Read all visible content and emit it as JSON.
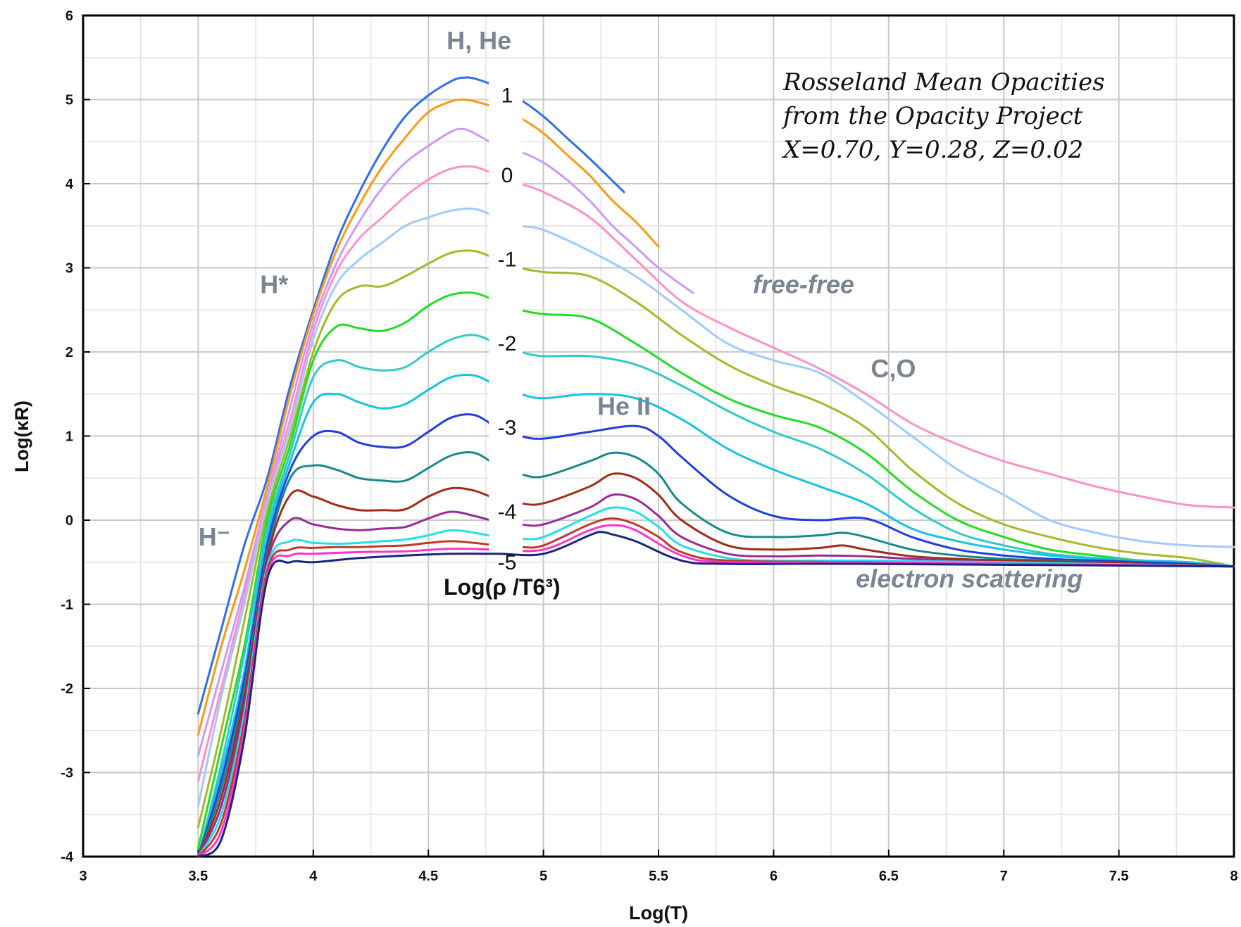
{
  "chart_data": {
    "type": "line",
    "xlabel": "Log(T)",
    "ylabel": "Log(κR)",
    "xlim": [
      3,
      8
    ],
    "ylim": [
      -4,
      6
    ],
    "xticks": [
      "3",
      "3.5",
      "4",
      "4.5",
      "5",
      "5.5",
      "6",
      "6.5",
      "7",
      "7.5",
      "8"
    ],
    "yticks": [
      "-4",
      "-3",
      "-2",
      "-1",
      "0",
      "1",
      "2",
      "3",
      "4",
      "5",
      "6"
    ],
    "grid": true,
    "info_lines": [
      "Rosseland Mean Opacities",
      "from the Opacity Project",
      "X=0.70, Y=0.28, Z=0.02"
    ],
    "density_title": "Log(ρ /T6³)",
    "density_labels": [
      {
        "text": "1",
        "y": 5.05
      },
      {
        "text": "0",
        "y": 4.1
      },
      {
        "text": "-1",
        "y": 3.1
      },
      {
        "text": "-2",
        "y": 2.1
      },
      {
        "text": "-3",
        "y": 1.1
      },
      {
        "text": "-4",
        "y": 0.1
      },
      {
        "text": "-5",
        "y": -0.5
      }
    ],
    "annotations": [
      {
        "text": "H, He",
        "x": 4.72,
        "y": 5.6,
        "style": "normal"
      },
      {
        "text": "H*",
        "x": 3.83,
        "y": 2.7,
        "style": "normal"
      },
      {
        "text": "H⁻",
        "x": 3.57,
        "y": -0.3,
        "style": "normal"
      },
      {
        "text": "He II",
        "x": 5.35,
        "y": 1.25,
        "style": "normal"
      },
      {
        "text": "C,O",
        "x": 6.52,
        "y": 1.7,
        "style": "normal"
      },
      {
        "text": "free-free",
        "x": 6.13,
        "y": 2.7,
        "style": "italic"
      },
      {
        "text": "electron scattering",
        "x": 6.85,
        "y": -0.8,
        "style": "italic"
      }
    ],
    "series": [
      {
        "color": "#2f6fe8",
        "x": [
          3.5,
          3.6,
          3.7,
          3.8,
          3.9,
          4.0,
          4.1,
          4.2,
          4.3,
          4.4,
          4.5,
          4.6,
          4.65,
          4.7,
          4.8,
          4.9,
          5.0,
          5.1,
          5.2,
          5.35
        ],
        "y": [
          -2.3,
          -1.3,
          -0.3,
          0.5,
          1.6,
          2.5,
          3.3,
          3.9,
          4.4,
          4.8,
          5.05,
          5.22,
          5.26,
          5.25,
          5.15,
          5.0,
          4.8,
          4.55,
          4.3,
          3.9
        ]
      },
      {
        "color": "#ff9912",
        "x": [
          3.5,
          3.6,
          3.7,
          3.8,
          3.9,
          4.0,
          4.1,
          4.2,
          4.3,
          4.4,
          4.5,
          4.6,
          4.65,
          4.7,
          4.8,
          4.9,
          5.0,
          5.1,
          5.2,
          5.3,
          5.4,
          5.5
        ],
        "y": [
          -2.55,
          -1.5,
          -0.6,
          0.4,
          1.5,
          2.45,
          3.2,
          3.75,
          4.2,
          4.55,
          4.85,
          4.98,
          5.0,
          4.98,
          4.9,
          4.78,
          4.6,
          4.35,
          4.1,
          3.8,
          3.55,
          3.25
        ]
      },
      {
        "color": "#cc99ff",
        "x": [
          3.5,
          3.6,
          3.7,
          3.8,
          3.9,
          4.0,
          4.1,
          4.2,
          4.3,
          4.4,
          4.5,
          4.6,
          4.65,
          4.7,
          4.8,
          4.9,
          5.0,
          5.1,
          5.2,
          5.3,
          5.4,
          5.5,
          5.65
        ],
        "y": [
          -2.8,
          -1.8,
          -0.8,
          0.3,
          1.35,
          2.35,
          3.05,
          3.55,
          3.95,
          4.25,
          4.45,
          4.62,
          4.65,
          4.6,
          4.45,
          4.38,
          4.25,
          4.05,
          3.8,
          3.5,
          3.25,
          3.0,
          2.7
        ]
      },
      {
        "color": "#ff8fc8",
        "x": [
          3.5,
          3.6,
          3.7,
          3.8,
          3.9,
          4.0,
          4.1,
          4.2,
          4.3,
          4.4,
          4.5,
          4.6,
          4.7,
          4.8,
          4.9,
          5.0,
          5.2,
          5.4,
          5.6,
          5.8,
          6.0,
          6.2,
          6.4,
          6.6,
          6.8,
          7.0,
          7.2,
          7.4,
          7.6,
          7.8,
          8.0
        ],
        "y": [
          -3.1,
          -2.0,
          -0.9,
          0.25,
          1.2,
          2.25,
          2.95,
          3.35,
          3.6,
          3.85,
          4.05,
          4.18,
          4.2,
          4.1,
          4.0,
          3.9,
          3.6,
          3.1,
          2.6,
          2.3,
          2.05,
          1.8,
          1.5,
          1.15,
          0.9,
          0.7,
          0.55,
          0.4,
          0.28,
          0.18,
          0.15
        ]
      },
      {
        "color": "#9ecbff",
        "x": [
          3.5,
          3.6,
          3.7,
          3.8,
          3.9,
          4.0,
          4.1,
          4.2,
          4.3,
          4.4,
          4.5,
          4.6,
          4.7,
          4.8,
          4.9,
          5.0,
          5.2,
          5.4,
          5.6,
          5.8,
          6.0,
          6.2,
          6.4,
          6.6,
          6.8,
          7.0,
          7.2,
          7.4,
          7.6,
          7.8,
          8.0
        ],
        "y": [
          -3.4,
          -2.1,
          -1.0,
          0.2,
          1.1,
          2.15,
          2.8,
          3.1,
          3.3,
          3.5,
          3.6,
          3.68,
          3.7,
          3.6,
          3.5,
          3.45,
          3.2,
          2.9,
          2.5,
          2.1,
          1.9,
          1.75,
          1.4,
          1.0,
          0.6,
          0.3,
          0.0,
          -0.15,
          -0.25,
          -0.3,
          -0.32
        ]
      },
      {
        "color": "#a8b82a",
        "x": [
          3.5,
          3.6,
          3.7,
          3.8,
          3.9,
          4.0,
          4.1,
          4.2,
          4.3,
          4.4,
          4.5,
          4.6,
          4.7,
          4.8,
          4.9,
          5.0,
          5.2,
          5.4,
          5.6,
          5.8,
          6.0,
          6.2,
          6.4,
          6.6,
          6.8,
          7.0,
          7.2,
          7.4,
          7.6,
          7.8,
          8.0
        ],
        "y": [
          -3.65,
          -2.5,
          -1.2,
          0.1,
          1.0,
          2.0,
          2.6,
          2.78,
          2.78,
          2.9,
          3.05,
          3.18,
          3.2,
          3.1,
          3.0,
          2.95,
          2.9,
          2.6,
          2.2,
          1.85,
          1.6,
          1.4,
          1.1,
          0.6,
          0.2,
          -0.05,
          -0.2,
          -0.32,
          -0.4,
          -0.45,
          -0.55
        ]
      },
      {
        "color": "#22dd22",
        "x": [
          3.5,
          3.6,
          3.7,
          3.8,
          3.9,
          4.0,
          4.1,
          4.2,
          4.3,
          4.4,
          4.5,
          4.6,
          4.7,
          4.8,
          4.9,
          5.0,
          5.2,
          5.4,
          5.6,
          5.8,
          6.0,
          6.2,
          6.4,
          6.6,
          6.8,
          7.0,
          7.2,
          7.4,
          7.6,
          7.8,
          8.0
        ],
        "y": [
          -3.9,
          -2.7,
          -1.5,
          0.0,
          0.9,
          1.9,
          2.3,
          2.28,
          2.25,
          2.35,
          2.55,
          2.68,
          2.7,
          2.6,
          2.5,
          2.45,
          2.4,
          2.1,
          1.75,
          1.45,
          1.25,
          1.1,
          0.8,
          0.35,
          0.0,
          -0.2,
          -0.35,
          -0.42,
          -0.48,
          -0.5,
          -0.55
        ]
      },
      {
        "color": "#33c9c9",
        "x": [
          3.5,
          3.6,
          3.7,
          3.8,
          3.9,
          4.0,
          4.1,
          4.2,
          4.3,
          4.4,
          4.5,
          4.6,
          4.7,
          4.8,
          4.9,
          5.0,
          5.2,
          5.4,
          5.6,
          5.8,
          6.0,
          6.2,
          6.4,
          6.6,
          6.8,
          7.0,
          7.2,
          7.4,
          7.6,
          7.8,
          8.0
        ],
        "y": [
          -4.0,
          -2.9,
          -1.6,
          -0.1,
          0.8,
          1.7,
          1.9,
          1.82,
          1.78,
          1.82,
          2.0,
          2.15,
          2.2,
          2.1,
          2.0,
          1.95,
          1.95,
          1.85,
          1.6,
          1.3,
          1.05,
          0.85,
          0.55,
          0.15,
          -0.15,
          -0.3,
          -0.4,
          -0.45,
          -0.48,
          -0.5,
          -0.55
        ]
      },
      {
        "color": "#16c2e6",
        "x": [
          3.5,
          3.6,
          3.7,
          3.8,
          3.9,
          4.0,
          4.1,
          4.2,
          4.3,
          4.4,
          4.5,
          4.6,
          4.7,
          4.8,
          4.9,
          5.0,
          5.2,
          5.4,
          5.6,
          5.8,
          6.0,
          6.2,
          6.4,
          6.6,
          6.8,
          7.0,
          7.2,
          7.4,
          7.6,
          7.8,
          8.0
        ],
        "y": [
          -4.0,
          -3.0,
          -1.8,
          -0.2,
          0.7,
          1.4,
          1.5,
          1.4,
          1.33,
          1.38,
          1.55,
          1.7,
          1.72,
          1.6,
          1.5,
          1.45,
          1.5,
          1.45,
          1.2,
          0.85,
          0.6,
          0.4,
          0.2,
          -0.1,
          -0.25,
          -0.35,
          -0.42,
          -0.46,
          -0.48,
          -0.5,
          -0.55
        ]
      },
      {
        "color": "#1f3fe0",
        "x": [
          3.5,
          3.6,
          3.7,
          3.8,
          3.9,
          4.0,
          4.1,
          4.2,
          4.3,
          4.4,
          4.5,
          4.6,
          4.7,
          4.8,
          4.9,
          5.0,
          5.2,
          5.4,
          5.5,
          5.6,
          5.8,
          6.0,
          6.2,
          6.4,
          6.6,
          6.8,
          7.0,
          7.2,
          7.4,
          7.6,
          7.8,
          8.0
        ],
        "y": [
          -4.0,
          -3.1,
          -1.9,
          -0.3,
          0.6,
          1.0,
          1.05,
          0.92,
          0.87,
          0.88,
          1.05,
          1.22,
          1.25,
          1.1,
          1.0,
          0.97,
          1.05,
          1.12,
          1.0,
          0.75,
          0.3,
          0.05,
          0.0,
          0.02,
          -0.2,
          -0.35,
          -0.42,
          -0.46,
          -0.48,
          -0.5,
          -0.52,
          -0.55
        ]
      },
      {
        "color": "#168a8a",
        "x": [
          3.5,
          3.6,
          3.7,
          3.8,
          3.9,
          4.0,
          4.1,
          4.2,
          4.3,
          4.4,
          4.5,
          4.6,
          4.7,
          4.8,
          4.9,
          5.0,
          5.2,
          5.3,
          5.4,
          5.5,
          5.6,
          5.8,
          6.0,
          6.2,
          6.3,
          6.4,
          6.6,
          6.8,
          7.0,
          7.2,
          7.4,
          7.6,
          8.0
        ],
        "y": [
          -4.0,
          -3.2,
          -2.0,
          -0.4,
          0.5,
          0.65,
          0.6,
          0.5,
          0.47,
          0.47,
          0.62,
          0.77,
          0.8,
          0.65,
          0.55,
          0.52,
          0.7,
          0.8,
          0.75,
          0.55,
          0.2,
          -0.15,
          -0.2,
          -0.18,
          -0.15,
          -0.2,
          -0.35,
          -0.42,
          -0.46,
          -0.48,
          -0.5,
          -0.52,
          -0.55
        ]
      },
      {
        "color": "#a52a1a",
        "x": [
          3.5,
          3.6,
          3.7,
          3.8,
          3.9,
          4.0,
          4.1,
          4.2,
          4.3,
          4.4,
          4.5,
          4.6,
          4.7,
          4.8,
          4.9,
          5.0,
          5.2,
          5.3,
          5.4,
          5.5,
          5.6,
          5.8,
          6.0,
          6.2,
          6.3,
          6.4,
          6.6,
          6.8,
          7.0,
          7.4,
          8.0
        ],
        "y": [
          -4.0,
          -3.3,
          -2.1,
          -0.45,
          0.3,
          0.28,
          0.18,
          0.12,
          0.12,
          0.13,
          0.28,
          0.38,
          0.35,
          0.25,
          0.2,
          0.2,
          0.4,
          0.55,
          0.5,
          0.3,
          0.0,
          -0.3,
          -0.35,
          -0.33,
          -0.3,
          -0.35,
          -0.43,
          -0.46,
          -0.48,
          -0.5,
          -0.55
        ]
      },
      {
        "color": "#9a2a9a",
        "x": [
          3.5,
          3.6,
          3.7,
          3.8,
          3.9,
          4.0,
          4.1,
          4.2,
          4.3,
          4.4,
          4.5,
          4.6,
          4.7,
          4.8,
          4.9,
          5.0,
          5.2,
          5.3,
          5.4,
          5.5,
          5.6,
          5.8,
          6.0,
          6.2,
          6.4,
          6.6,
          7.0,
          8.0
        ],
        "y": [
          -4.0,
          -3.4,
          -2.2,
          -0.5,
          0.0,
          -0.05,
          -0.1,
          -0.12,
          -0.1,
          -0.08,
          0.02,
          0.1,
          0.05,
          -0.02,
          -0.05,
          -0.05,
          0.15,
          0.3,
          0.25,
          0.05,
          -0.2,
          -0.4,
          -0.43,
          -0.42,
          -0.43,
          -0.46,
          -0.5,
          -0.55
        ]
      },
      {
        "color": "#22e0e8",
        "x": [
          3.5,
          3.6,
          3.7,
          3.8,
          3.9,
          4.0,
          4.1,
          4.2,
          4.3,
          4.4,
          4.5,
          4.6,
          4.7,
          4.8,
          4.9,
          5.0,
          5.2,
          5.3,
          5.4,
          5.5,
          5.6,
          5.8,
          6.0,
          6.4,
          7.0,
          8.0
        ],
        "y": [
          -4.0,
          -3.5,
          -2.3,
          -0.55,
          -0.25,
          -0.27,
          -0.28,
          -0.27,
          -0.25,
          -0.23,
          -0.18,
          -0.12,
          -0.15,
          -0.2,
          -0.22,
          -0.2,
          0.05,
          0.15,
          0.1,
          -0.08,
          -0.3,
          -0.45,
          -0.48,
          -0.48,
          -0.5,
          -0.55
        ]
      },
      {
        "color": "#c0392b",
        "x": [
          3.5,
          3.6,
          3.7,
          3.8,
          3.9,
          4.0,
          4.1,
          4.2,
          4.3,
          4.4,
          4.5,
          4.6,
          4.7,
          4.8,
          4.9,
          5.0,
          5.2,
          5.3,
          5.4,
          5.5,
          5.6,
          5.8,
          6.4,
          8.0
        ],
        "y": [
          -4.0,
          -3.6,
          -2.4,
          -0.6,
          -0.35,
          -0.33,
          -0.32,
          -0.32,
          -0.31,
          -0.3,
          -0.27,
          -0.25,
          -0.27,
          -0.3,
          -0.32,
          -0.3,
          -0.05,
          0.02,
          -0.05,
          -0.2,
          -0.38,
          -0.48,
          -0.5,
          -0.55
        ]
      },
      {
        "color": "#ff33cc",
        "x": [
          3.5,
          3.6,
          3.7,
          3.8,
          3.9,
          4.0,
          4.2,
          4.4,
          4.6,
          4.8,
          5.0,
          5.2,
          5.3,
          5.4,
          5.6,
          5.8,
          6.4,
          8.0
        ],
        "y": [
          -4.0,
          -3.7,
          -2.5,
          -0.65,
          -0.42,
          -0.4,
          -0.38,
          -0.37,
          -0.34,
          -0.35,
          -0.35,
          -0.12,
          -0.06,
          -0.12,
          -0.42,
          -0.5,
          -0.5,
          -0.55
        ]
      },
      {
        "color": "#1a237e",
        "x": [
          3.5,
          3.6,
          3.7,
          3.8,
          3.9,
          4.0,
          4.2,
          4.4,
          4.6,
          4.8,
          5.0,
          5.2,
          5.25,
          5.3,
          5.4,
          5.6,
          5.8,
          6.4,
          8.0
        ],
        "y": [
          -4.0,
          -3.8,
          -2.6,
          -0.7,
          -0.5,
          -0.5,
          -0.45,
          -0.42,
          -0.4,
          -0.4,
          -0.4,
          -0.18,
          -0.14,
          -0.17,
          -0.25,
          -0.48,
          -0.52,
          -0.52,
          -0.55
        ]
      }
    ]
  }
}
